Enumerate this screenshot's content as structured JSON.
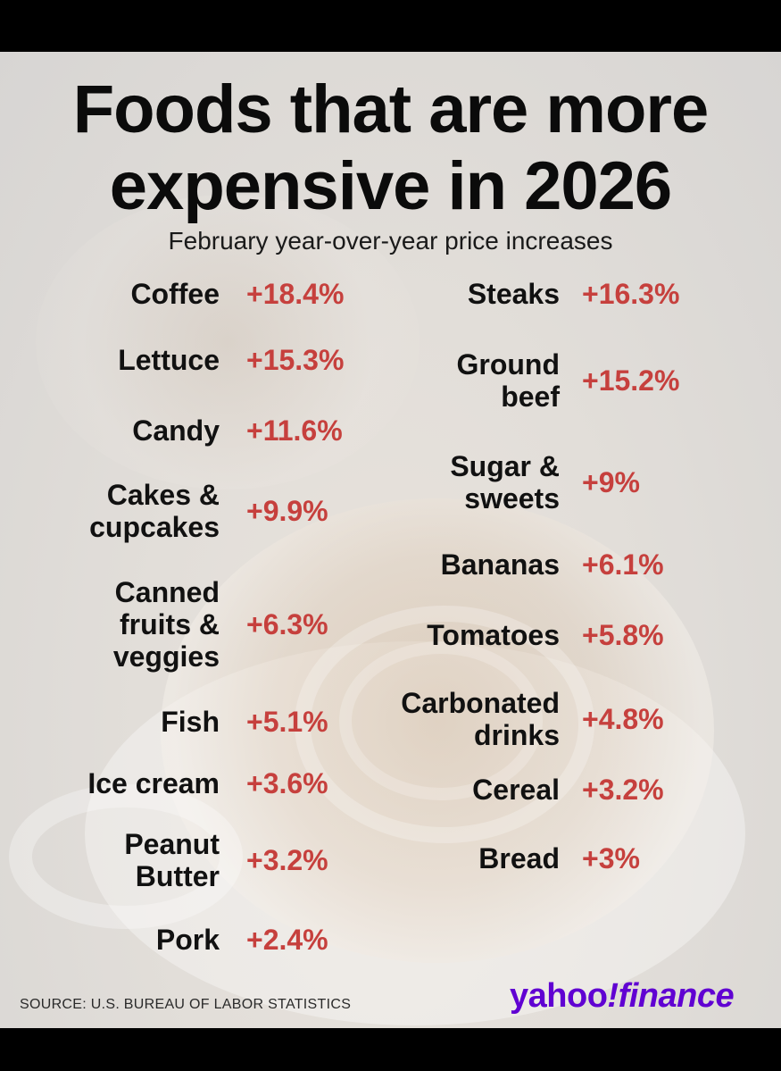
{
  "title": "Foods that are more expensive in 2026",
  "subtitle": "February year-over-year price increases",
  "value_color": "#c6403d",
  "left_items": [
    {
      "label": "Coffee",
      "value": "+18.4%"
    },
    {
      "label": "Lettuce",
      "value": "+15.3%"
    },
    {
      "label": "Candy",
      "value": "+11.6%"
    },
    {
      "label": "Cakes &\ncupcakes",
      "value": "+9.9%"
    },
    {
      "label": "Canned\nfruits &\nveggies",
      "value": "+6.3%"
    },
    {
      "label": "Fish",
      "value": "+5.1%"
    },
    {
      "label": "Ice cream",
      "value": "+3.6%"
    },
    {
      "label": "Peanut\nButter",
      "value": "+3.2%"
    },
    {
      "label": "Pork",
      "value": "+2.4%"
    }
  ],
  "right_items": [
    {
      "label": "Steaks",
      "value": "+16.3%"
    },
    {
      "label": "Ground\nbeef",
      "value": "+15.2%"
    },
    {
      "label": "Sugar &\nsweets",
      "value": "+9%"
    },
    {
      "label": "Bananas",
      "value": "+6.1%"
    },
    {
      "label": "Tomatoes",
      "value": "+5.8%"
    },
    {
      "label": "Carbonated\ndrinks",
      "value": "+4.8%"
    },
    {
      "label": "Cereal",
      "value": "+3.2%"
    },
    {
      "label": "Bread",
      "value": "+3%"
    }
  ],
  "source": "SOURCE: U.S. BUREAU OF LABOR STATISTICS",
  "logo": {
    "part1": "yahoo",
    "part2": "!",
    "part3": "finance"
  }
}
